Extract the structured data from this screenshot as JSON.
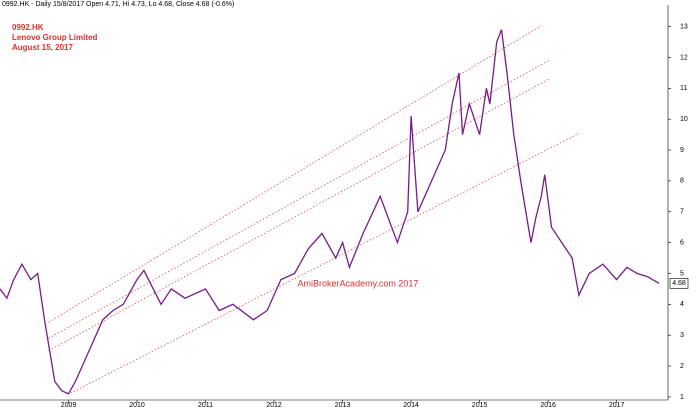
{
  "chart_data": {
    "type": "line",
    "header": "0992.HK - Daily 15/8/2017 Open 4.71, Hi 4.73, Lo 4.68, Close 4.68 (-0.6%)",
    "title": "0992.HK",
    "subtitle": "Lenovo Group Limited",
    "date_label": "August 15, 2017",
    "watermark": "AmiBrokerAcademy.com   2017",
    "xlim": [
      2008.0,
      2017.75
    ],
    "xticks": [
      2009,
      2010,
      2011,
      2012,
      2013,
      2014,
      2015,
      2016,
      2017
    ],
    "ylim": [
      0.9,
      13.7
    ],
    "yticks": [
      1,
      2,
      3,
      4,
      5,
      6,
      7,
      8,
      9,
      10,
      11,
      12,
      13
    ],
    "grid": false,
    "series": [
      {
        "name": "0992.HK",
        "color": "#7a1a8a",
        "x": [
          2008.0,
          2008.1,
          2008.2,
          2008.32,
          2008.45,
          2008.55,
          2008.65,
          2008.8,
          2008.9,
          2009.0,
          2009.1,
          2009.3,
          2009.5,
          2009.65,
          2009.8,
          2010.0,
          2010.1,
          2010.35,
          2010.5,
          2010.7,
          2011.0,
          2011.2,
          2011.4,
          2011.7,
          2011.9,
          2012.1,
          2012.3,
          2012.5,
          2012.7,
          2012.9,
          2013.0,
          2013.1,
          2013.3,
          2013.55,
          2013.8,
          2013.95,
          2014.0,
          2014.1,
          2014.3,
          2014.5,
          2014.6,
          2014.7,
          2014.75,
          2014.85,
          2015.0,
          2015.1,
          2015.15,
          2015.25,
          2015.32,
          2015.4,
          2015.5,
          2015.6,
          2015.75,
          2015.82,
          2015.9,
          2015.95,
          2016.05,
          2016.2,
          2016.35,
          2016.45,
          2016.6,
          2016.8,
          2017.0,
          2017.15,
          2017.3,
          2017.45,
          2017.62
        ],
        "values": [
          4.5,
          4.2,
          4.8,
          5.3,
          4.8,
          5.0,
          3.5,
          1.5,
          1.2,
          1.1,
          1.5,
          2.5,
          3.5,
          3.8,
          4.0,
          4.8,
          5.1,
          4.0,
          4.5,
          4.2,
          4.5,
          3.8,
          4.0,
          3.5,
          3.8,
          4.8,
          5.0,
          5.8,
          6.3,
          5.5,
          6.0,
          5.2,
          6.3,
          7.5,
          6.0,
          7.0,
          10.1,
          7.0,
          8.0,
          9.0,
          10.5,
          11.5,
          9.5,
          10.5,
          9.5,
          11.0,
          10.5,
          12.5,
          12.9,
          11.5,
          9.5,
          8.0,
          6.0,
          6.8,
          7.5,
          8.2,
          6.5,
          6.0,
          5.5,
          4.3,
          5.0,
          5.3,
          4.8,
          5.2,
          5.0,
          4.9,
          4.68
        ]
      }
    ],
    "trendlines": [
      {
        "color": "#e05050",
        "x": [
          2008.71,
          2015.9
        ],
        "values": [
          3.42,
          13.03
        ]
      },
      {
        "color": "#e05050",
        "x": [
          2008.71,
          2016.01
        ],
        "values": [
          2.9,
          11.9
        ]
      },
      {
        "color": "#e05050",
        "x": [
          2008.71,
          2016.01
        ],
        "values": [
          2.5,
          11.3
        ]
      },
      {
        "color": "#e05050",
        "x": [
          2009.03,
          2016.45
        ],
        "values": [
          1.12,
          9.54
        ]
      }
    ]
  }
}
